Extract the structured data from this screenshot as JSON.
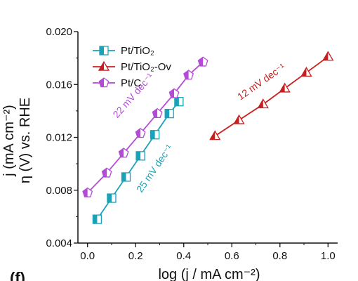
{
  "panel_label": "(f)",
  "legend_position": "top-left",
  "colors": {
    "pt_tio2": "#1aa3b8",
    "pt_tio2_ov": "#c81e1e",
    "pt_c": "#b54ad9"
  },
  "chart_data": {
    "type": "line",
    "xlabel": "log (j / mA cm⁻²)",
    "ylabel": "η (V) vs. RHE",
    "ylabel_partial": "j (mA cm⁻²)",
    "xlim": [
      -0.04,
      1.04
    ],
    "ylim": [
      0.004,
      0.02
    ],
    "xticks": [
      "0.0",
      "0.2",
      "0.4",
      "0.6",
      "0.8",
      "1.0"
    ],
    "xtick_values": [
      0.0,
      0.2,
      0.4,
      0.6,
      0.8,
      1.0
    ],
    "yticks": [
      "0.004",
      "0.008",
      "0.012",
      "0.016",
      "0.020"
    ],
    "ytick_values": [
      0.004,
      0.008,
      0.012,
      0.016,
      0.02
    ],
    "grid": false,
    "series": [
      {
        "name": "Pt/TiO₂",
        "marker": "square-half",
        "color": "#1aa3b8",
        "x": [
          0.04,
          0.1,
          0.16,
          0.22,
          0.28,
          0.34,
          0.38
        ],
        "y": [
          0.0058,
          0.0074,
          0.009,
          0.0106,
          0.0122,
          0.0138,
          0.0147
        ],
        "slope_label": "25 mV dec⁻¹"
      },
      {
        "name": "Pt/TiO₂-Ov",
        "marker": "triangle-half",
        "color": "#c81e1e",
        "x": [
          0.53,
          0.63,
          0.73,
          0.82,
          0.91,
          1.0
        ],
        "y": [
          0.0121,
          0.0133,
          0.0145,
          0.0157,
          0.0169,
          0.0181
        ],
        "slope_label": "12 mV dec⁻¹"
      },
      {
        "name": "Pt/C",
        "marker": "pentagon-half",
        "color": "#b54ad9",
        "x": [
          0.0,
          0.08,
          0.15,
          0.22,
          0.29,
          0.36,
          0.42,
          0.48
        ],
        "y": [
          0.0078,
          0.0093,
          0.0108,
          0.0123,
          0.0138,
          0.0153,
          0.0167,
          0.0177
        ],
        "slope_label": "22 mV dec⁻¹"
      }
    ]
  }
}
